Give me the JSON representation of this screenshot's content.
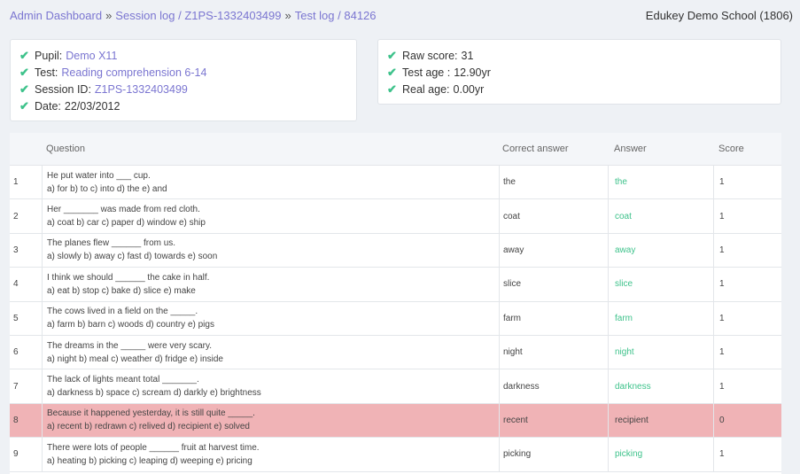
{
  "breadcrumb": {
    "items": [
      "Admin Dashboard",
      "Session log / Z1PS-1332403499",
      "Test log / 84126"
    ],
    "separator": "»"
  },
  "school": "Edukey Demo School (1806)",
  "info_left": [
    {
      "label": "Pupil:",
      "value": "Demo X11"
    },
    {
      "label": "Test:",
      "value": "Reading comprehension 6-14"
    },
    {
      "label": "Session ID:",
      "value": "Z1PS-1332403499"
    },
    {
      "label": "Date:",
      "value": "22/03/2012"
    }
  ],
  "info_right": [
    {
      "label": "Raw score:",
      "value": "31"
    },
    {
      "label": "Test age :",
      "value": "12.90yr"
    },
    {
      "label": "Real age:",
      "value": "0.00yr"
    }
  ],
  "table": {
    "headers": {
      "question": "Question",
      "correct": "Correct answer",
      "answer": "Answer",
      "score": "Score"
    },
    "rows": [
      {
        "num": "1",
        "q1": "He put water into ___ cup.",
        "q2": "a) for b) to c) into d) the e) and",
        "correct": "the",
        "answer": "the",
        "score": "1"
      },
      {
        "num": "2",
        "q1": "Her _______ was made from red cloth.",
        "q2": "a) coat b) car c) paper d) window e) ship",
        "correct": "coat",
        "answer": "coat",
        "score": "1"
      },
      {
        "num": "3",
        "q1": "The planes flew ______ from us.",
        "q2": "a) slowly b) away c) fast d) towards e) soon",
        "correct": "away",
        "answer": "away",
        "score": "1"
      },
      {
        "num": "4",
        "q1": "I think we should ______ the cake in half.",
        "q2": "a) eat b) stop c) bake d) slice e) make",
        "correct": "slice",
        "answer": "slice",
        "score": "1"
      },
      {
        "num": "5",
        "q1": "The cows lived in a field on the _____.",
        "q2": "a) farm b) barn c) woods d) country e) pigs",
        "correct": "farm",
        "answer": "farm",
        "score": "1"
      },
      {
        "num": "6",
        "q1": "The dreams in the _____ were very scary.",
        "q2": "a) night b) meal c) weather d) fridge e) inside",
        "correct": "night",
        "answer": "night",
        "score": "1"
      },
      {
        "num": "7",
        "q1": "The lack of lights meant total _______.",
        "q2": "a) darkness b) space c) scream d) darkly e) brightness",
        "correct": "darkness",
        "answer": "darkness",
        "score": "1"
      },
      {
        "num": "8",
        "q1": "Because it happened yesterday, it is still quite _____.",
        "q2": "a) recent b) redrawn c) relived d) recipient e) solved",
        "correct": "recent",
        "answer": "recipient",
        "score": "0",
        "wrong": true
      },
      {
        "num": "9",
        "q1": "There were lots of people ______ fruit at harvest time.",
        "q2": "a) heating b) picking c) leaping d) weeping e) pricing",
        "correct": "picking",
        "answer": "picking",
        "score": "1"
      }
    ]
  },
  "colors": {
    "link": "#7b76d1",
    "check": "#3ec28b",
    "wrong_row": "#f0b3b6"
  }
}
